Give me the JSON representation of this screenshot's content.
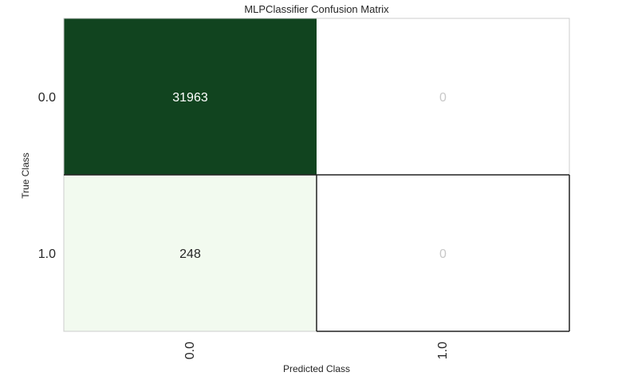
{
  "chart_data": {
    "type": "heatmap",
    "title": "MLPClassifier Confusion Matrix",
    "xlabel": "Predicted Class",
    "ylabel": "True Class",
    "x_categories": [
      "0.0",
      "1.0"
    ],
    "y_categories": [
      "0.0",
      "1.0"
    ],
    "values": [
      [
        31963,
        0
      ],
      [
        248,
        0
      ]
    ],
    "colors": {
      "high": "#11441f",
      "low": "#f4fbf1",
      "zero": "#ffffff",
      "text_on_dark": "#ffffff",
      "text_on_light": "#262626",
      "text_zero": "#c8c8c8"
    }
  }
}
